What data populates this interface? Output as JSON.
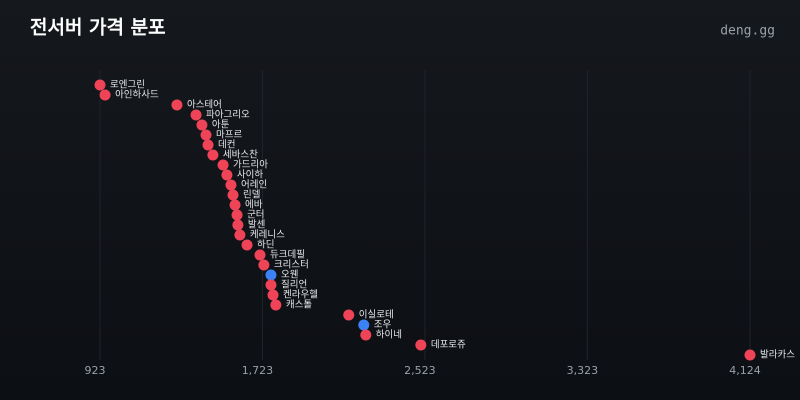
{
  "chart_data": {
    "type": "dot",
    "title": "전서버 가격 분포",
    "brand": "deng.gg",
    "categories": [
      "로엔그린",
      "아인하사드",
      "아스테어",
      "파아그리오",
      "아툰",
      "마프르",
      "데컨",
      "세바스찬",
      "가드리아",
      "사이하",
      "어레인",
      "린델",
      "에바",
      "군터",
      "발센",
      "케레니스",
      "하딘",
      "듀크데필",
      "크리스터",
      "오웬",
      "질리언",
      "켄라우헬",
      "캐스톨",
      "이실로테",
      "조우",
      "하이네",
      "데포로쥬",
      "발라카스"
    ],
    "values": [
      923,
      948,
      1302,
      1396,
      1425,
      1445,
      1455,
      1479,
      1529,
      1548,
      1568,
      1578,
      1588,
      1598,
      1602,
      1612,
      1647,
      1711,
      1730,
      1765,
      1765,
      1775,
      1789,
      2148,
      2222,
      2232,
      2503,
      4124
    ],
    "colors": [
      "#ef4458",
      "#ef4458",
      "#ef4458",
      "#ef4458",
      "#ef4458",
      "#ef4458",
      "#ef4458",
      "#ef4458",
      "#ef4458",
      "#ef4458",
      "#ef4458",
      "#ef4458",
      "#ef4458",
      "#ef4458",
      "#ef4458",
      "#ef4458",
      "#ef4458",
      "#ef4458",
      "#ef4458",
      "#3b82f6",
      "#ef4458",
      "#ef4458",
      "#ef4458",
      "#ef4458",
      "#3b82f6",
      "#ef4458",
      "#ef4458",
      "#ef4458"
    ],
    "xlim": [
      923,
      4124
    ],
    "xticks": [
      923,
      {
        "value": 1723,
        "label": "1,723"
      },
      {
        "value": 2523,
        "label": "2,523"
      },
      {
        "value": 3323,
        "label": "3,323"
      },
      {
        "value": 4124,
        "label": "4,124"
      }
    ],
    "grid": true
  }
}
